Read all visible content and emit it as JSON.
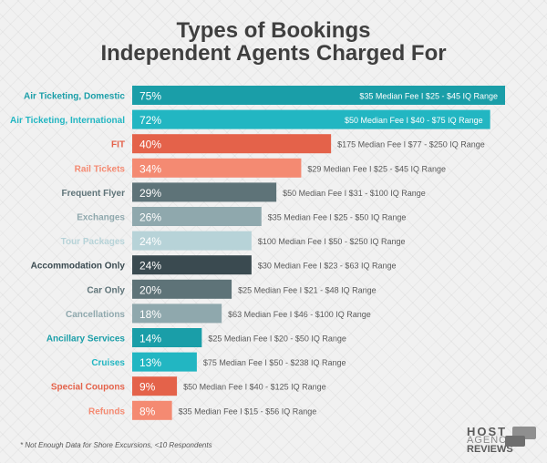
{
  "title_line1": "Types of Bookings",
  "title_line2": "Independent Agents Charged For",
  "footnote": "* Not Enough Data for Shore Excursions, <10 Respondents",
  "logo": {
    "line1": "HOST",
    "line2": "AGENCY",
    "line3": "REVIEWS"
  },
  "chart_data": {
    "type": "bar",
    "orientation": "horizontal",
    "categories": [
      "Air Ticketing, Domestic",
      "Air Ticketing, International",
      "FIT",
      "Rail Tickets",
      "Frequent Flyer",
      "Exchanges",
      "Tour Packages",
      "Accommodation Only",
      "Car Only",
      "Cancellations",
      "Ancillary Services",
      "Cruises",
      "Special Coupons",
      "Refunds"
    ],
    "values": [
      75,
      72,
      40,
      34,
      29,
      26,
      24,
      24,
      20,
      18,
      14,
      13,
      9,
      8
    ],
    "value_labels": [
      "75%",
      "72%",
      "40%",
      "34%",
      "29%",
      "26%",
      "24%",
      "24%",
      "20%",
      "18%",
      "14%",
      "13%",
      "9%",
      "8%"
    ],
    "annotations": [
      "$35 Median Fee I $25 - $45 IQ Range",
      "$50 Median Fee I $40 - $75 IQ Range",
      "$175 Median Fee I $77 - $250 IQ Range",
      "$29 Median Fee I $25 - $45 IQ Range",
      "$50 Median Fee I $31 - $100 IQ Range",
      "$35 Median Fee I $25 - $50 IQ Range",
      "$100 Median Fee I $50 - $250 IQ Range",
      "$30 Median Fee I $23 - $63 IQ Range",
      "$25 Median Fee I $21 - $48 IQ Range",
      "$63 Median Fee I $46 - $100 IQ Range",
      "$25 Median Fee I $20 - $50 IQ Range",
      "$75 Median Fee I $50 - $238 IQ Range",
      "$50 Median Fee I $40 - $125 IQ Range",
      "$35 Median Fee I $15 - $56 IQ Range"
    ],
    "colors": [
      "#1a9ea8",
      "#22b6c2",
      "#e4624a",
      "#f48a72",
      "#5e7378",
      "#8fa8ad",
      "#b7d3d8",
      "#3a4a50",
      "#5e7378",
      "#8fa8ad",
      "#1a9ea8",
      "#22b6c2",
      "#e4624a",
      "#f48a72"
    ],
    "xlim": [
      0,
      75
    ],
    "title": "Types of Bookings Independent Agents Charged For"
  }
}
